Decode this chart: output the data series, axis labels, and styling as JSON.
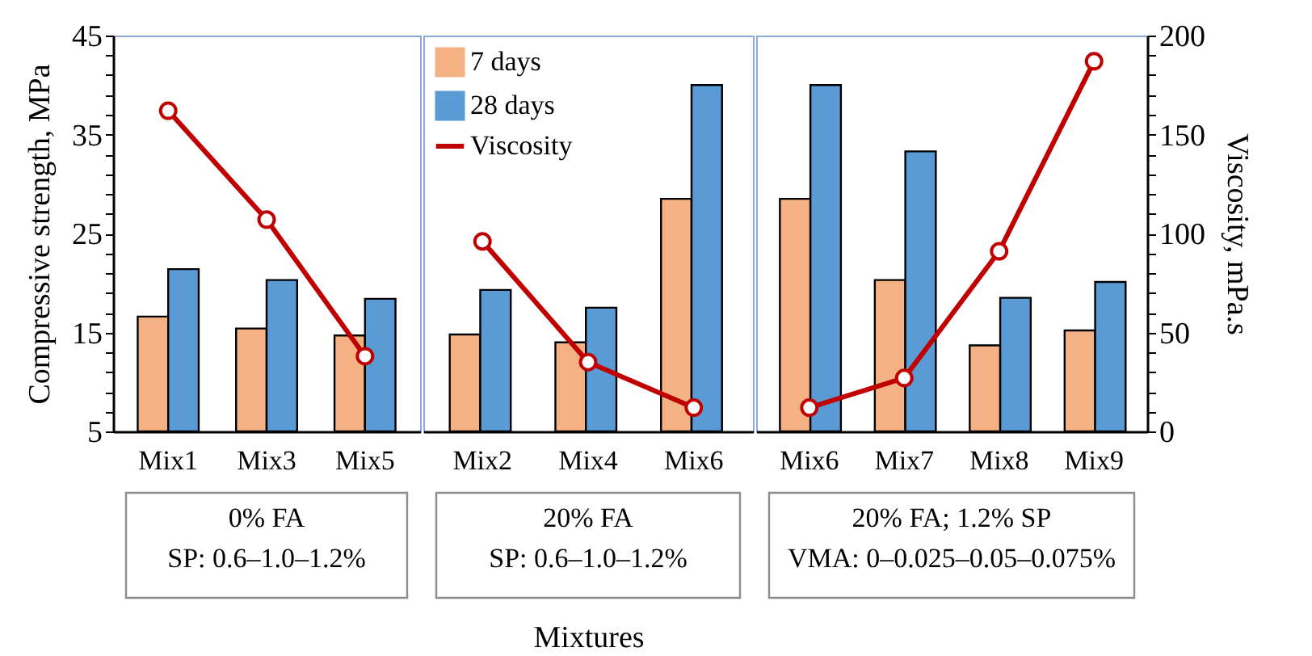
{
  "chart_data": [
    {
      "type": "bar",
      "categories": [
        "Mix1",
        "Mix3",
        "Mix5"
      ],
      "ylabel": "Compressive strength, MPa",
      "annotations": [
        "0% FA",
        "SP: 0.6–1.0–1.2%"
      ],
      "tick_labels": "xy",
      "series": [
        {
          "color": "#f4b183",
          "values": [
            16.6,
            15.4,
            14.7
          ]
        },
        {
          "color": "#5b9bd5",
          "values": [
            21.4,
            20.3,
            18.4
          ]
        },
        {
          "type": "line",
          "axis": "y2",
          "color": "#c00000",
          "values": [
            162,
            107,
            38
          ]
        }
      ],
      "ylim": [
        5,
        45
      ],
      "yticks": [
        5,
        {
          "value": 7,
          "label": null
        },
        {
          "value": 9,
          "label": null
        },
        {
          "value": 11,
          "label": null
        },
        {
          "value": 13,
          "label": null
        },
        15,
        {
          "value": 17,
          "label": null
        },
        {
          "value": 19,
          "label": null
        },
        {
          "value": 21,
          "label": null
        },
        {
          "value": 23,
          "label": null
        },
        25,
        {
          "value": 27,
          "label": null
        },
        {
          "value": 29,
          "label": null
        },
        {
          "value": 31,
          "label": null
        },
        {
          "value": 33,
          "label": null
        },
        35,
        {
          "value": 37,
          "label": null
        },
        {
          "value": 39,
          "label": null
        },
        {
          "value": 41,
          "label": null
        },
        {
          "value": 43,
          "label": null
        },
        45
      ],
      "y2lim": [
        0,
        200
      ],
      "marker": "circle"
    },
    {
      "type": "bar",
      "categories": [
        "Mix2",
        "Mix4",
        "Mix6"
      ],
      "xlabel": "Mixtures",
      "annotations": [
        "20% FA",
        "SP: 0.6–1.0–1.2%"
      ],
      "tick_labels": "x",
      "legend": "top left",
      "series": [
        {
          "name": "7 days",
          "color": "#f4b183",
          "values": [
            14.8,
            14.0,
            28.5
          ]
        },
        {
          "name": "28 days",
          "color": "#5b9bd5",
          "values": [
            19.3,
            17.5,
            40.0
          ]
        },
        {
          "type": "line",
          "axis": "y2",
          "name": "Viscosity",
          "color": "#c00000",
          "values": [
            96,
            35,
            12
          ]
        }
      ],
      "ylim": [
        5,
        45
      ],
      "y2lim": [
        0,
        200
      ],
      "marker": "circle"
    },
    {
      "type": "bar",
      "categories": [
        "Mix6",
        "Mix7",
        "Mix8",
        "Mix9"
      ],
      "y2label": "Viscosity, mPa.s",
      "annotations": [
        "20% FA; 1.2% SP",
        "VMA: 0–0.025–0.05–0.075%"
      ],
      "tick_labels": "xy2",
      "series": [
        {
          "color": "#f4b183",
          "values": [
            28.5,
            20.3,
            13.7,
            15.2
          ]
        },
        {
          "color": "#5b9bd5",
          "values": [
            40.0,
            33.3,
            18.5,
            20.1
          ]
        },
        {
          "type": "line",
          "axis": "y2",
          "color": "#c00000",
          "values": [
            12,
            27,
            91,
            187
          ]
        }
      ],
      "ylim": [
        5,
        45
      ],
      "y2lim": [
        0,
        200
      ],
      "y2ticks": [
        0,
        {
          "value": 10,
          "label": null
        },
        {
          "value": 20,
          "label": null
        },
        {
          "value": 30,
          "label": null
        },
        {
          "value": 40,
          "label": null
        },
        50,
        {
          "value": 60,
          "label": null
        },
        {
          "value": 70,
          "label": null
        },
        {
          "value": 80,
          "label": null
        },
        {
          "value": 90,
          "label": null
        },
        100,
        {
          "value": 110,
          "label": null
        },
        {
          "value": 120,
          "label": null
        },
        {
          "value": 130,
          "label": null
        },
        {
          "value": 140,
          "label": null
        },
        150,
        {
          "value": 160,
          "label": null
        },
        {
          "value": 170,
          "label": null
        },
        {
          "value": 180,
          "label": null
        },
        {
          "value": 190,
          "label": null
        },
        200
      ],
      "marker": "circle"
    }
  ]
}
